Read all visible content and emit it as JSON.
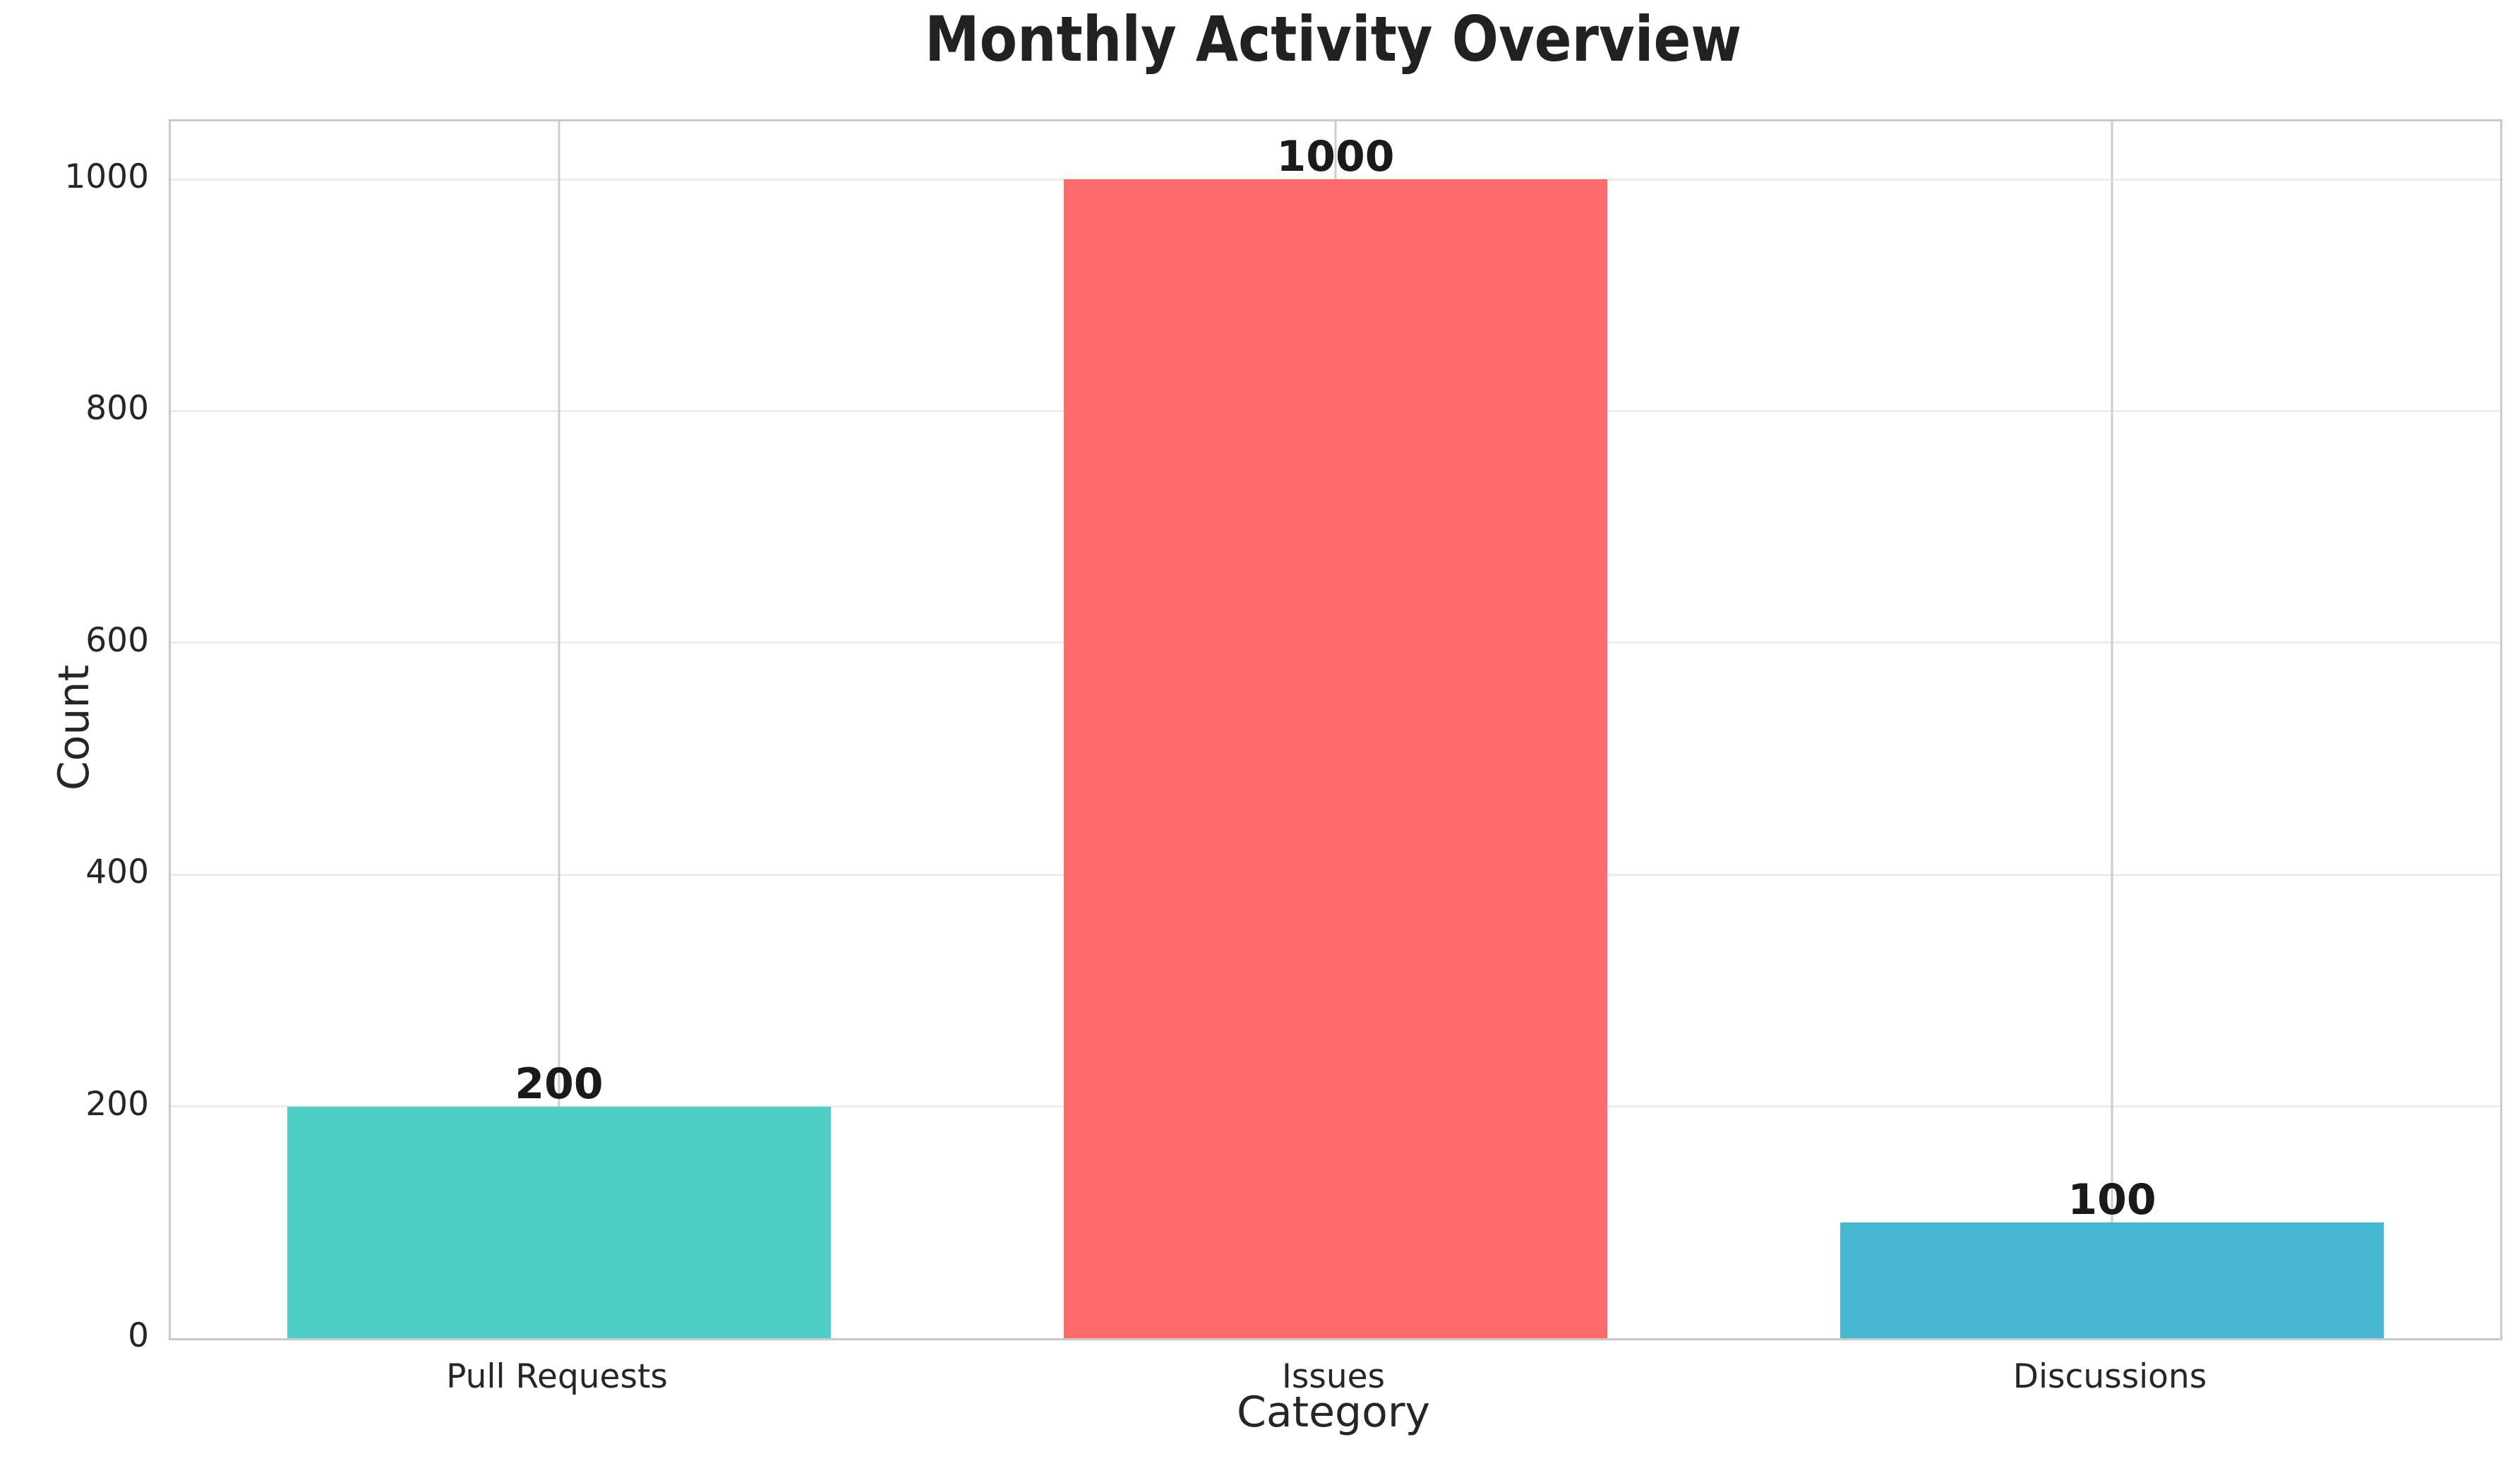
{
  "chart_data": {
    "type": "bar",
    "title": "Monthly Activity Overview",
    "xlabel": "Category",
    "ylabel": "Count",
    "categories": [
      "Pull Requests",
      "Issues",
      "Discussions"
    ],
    "values": [
      200,
      1000,
      100
    ],
    "bar_labels": [
      "200",
      "1000",
      "100"
    ],
    "bar_colors": [
      "#4ECDC4",
      "#FF6B6B",
      "#45B7D1"
    ],
    "yticks": [
      0,
      200,
      400,
      600,
      800,
      1000
    ],
    "ylim": [
      0,
      1050
    ],
    "grid": "on",
    "legend": "none",
    "colors": {
      "background": "#ffffff",
      "text": "#262626",
      "title_text": "#212121",
      "value_label_text": "#1a1a1a",
      "spine": "#c9c9c9",
      "grid_horizontal": "#ececec",
      "grid_vertical": "#cccccc"
    }
  }
}
